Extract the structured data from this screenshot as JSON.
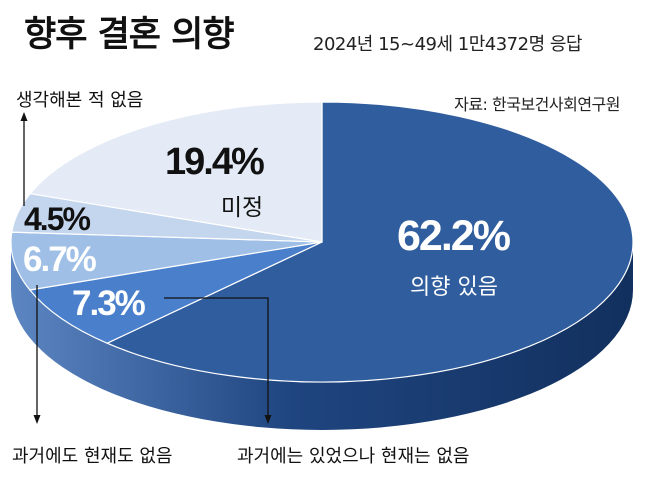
{
  "header": {
    "title": "향후 결혼 의향",
    "subtitle": "2024년 15~49세 1만4372명 응답",
    "source": "자료: 한국보건사회연구원"
  },
  "chart_data": {
    "type": "pie",
    "title": "향후 결혼 의향",
    "subtitle": "2024년 15~49세 1만4372명 응답",
    "unit": "%",
    "slices": [
      {
        "label": "의향 있음",
        "value": 62.2,
        "value_text": "62.2%",
        "color": "#2f5d9e"
      },
      {
        "label": "과거에는 있었으나 현재는 없음",
        "value": 7.3,
        "value_text": "7.3%",
        "color": "#4a7fcb"
      },
      {
        "label": "과거에도 현재도 없음",
        "value": 6.7,
        "value_text": "6.7%",
        "color": "#9fbfe6"
      },
      {
        "label": "생각해본 적 없음",
        "value": 4.5,
        "value_text": "4.5%",
        "color": "#c4d6ee"
      },
      {
        "label": "미정",
        "value": 19.4,
        "value_text": "19.4%",
        "color": "#e4ebf6"
      }
    ]
  }
}
